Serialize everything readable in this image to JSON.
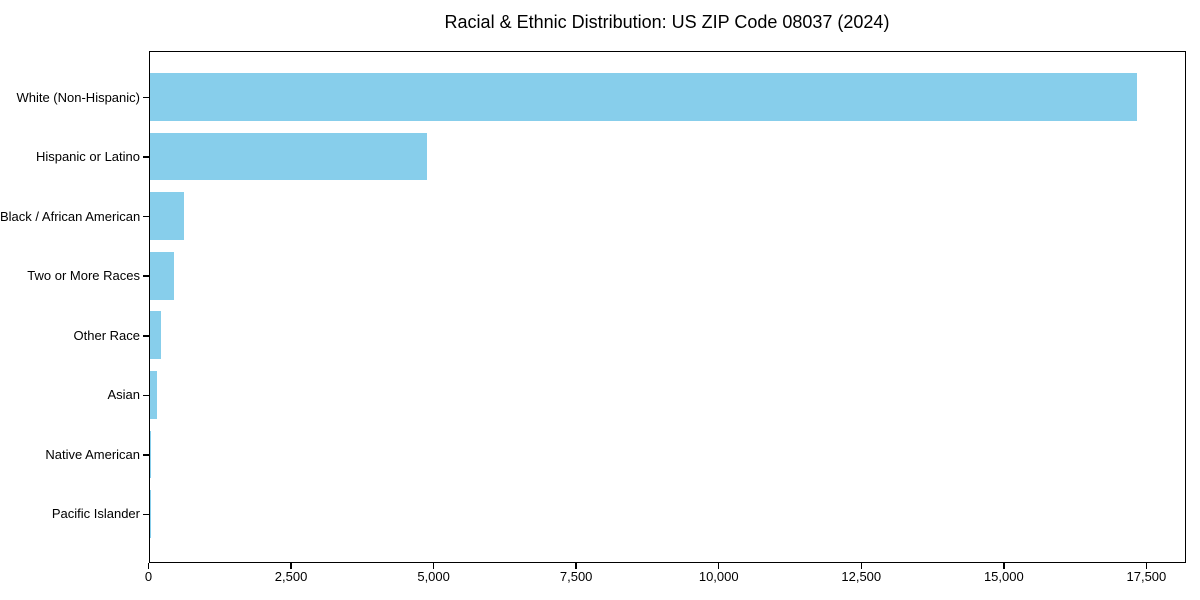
{
  "chart_data": {
    "type": "bar",
    "orientation": "horizontal",
    "title": "Racial & Ethnic Distribution: US ZIP Code 08037 (2024)",
    "categories": [
      "White (Non-Hispanic)",
      "Hispanic or Latino",
      "Black / African American",
      "Two or More Races",
      "Other Race",
      "Asian",
      "Native American",
      "Pacific Islander"
    ],
    "values": [
      17320,
      4870,
      605,
      430,
      195,
      130,
      25,
      5
    ],
    "xlabel": "",
    "ylabel": "",
    "xlim": [
      0,
      18186
    ],
    "xticks": [
      0,
      2500,
      5000,
      7500,
      10000,
      12500,
      15000,
      17500
    ],
    "xtick_labels": [
      "0",
      "2,500",
      "5,000",
      "7,500",
      "10,000",
      "12,500",
      "15,000",
      "17,500"
    ],
    "bar_color": "#87CEEB",
    "frame_color": "#000000",
    "text_color": "#000000",
    "background_color": "#ffffff",
    "grid": false,
    "legend": null
  }
}
